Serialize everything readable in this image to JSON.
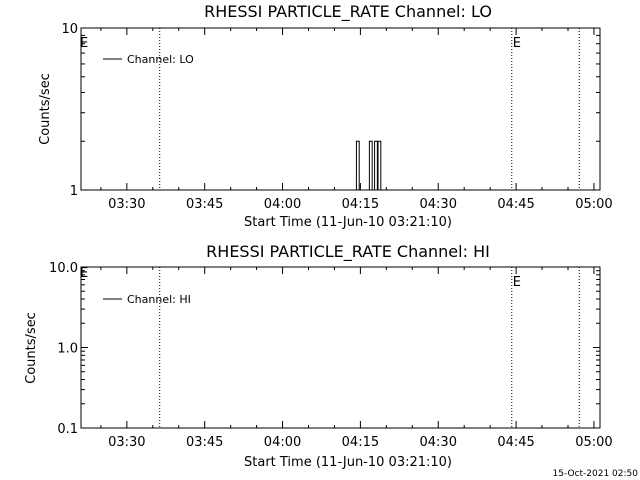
{
  "chart_data": [
    {
      "type": "line",
      "title": "RHESSI PARTICLE_RATE Channel: LO",
      "xlabel": "Start Time (11-Jun-10 03:21:10)",
      "ylabel": "Counts/sec",
      "yscale": "log",
      "ylim": [
        1,
        10
      ],
      "y_tick_labels": [
        "1",
        "10"
      ],
      "xlim": [
        "03:21:10",
        "05:01:10"
      ],
      "x_tick_labels": [
        "03:30",
        "03:45",
        "04:00",
        "04:15",
        "04:30",
        "04:45",
        "05:00"
      ],
      "vertical_markers": [
        {
          "time": "03:36:20",
          "label": ""
        },
        {
          "time": "04:44:10",
          "label": "E"
        },
        {
          "time": "04:57:10",
          "label": ""
        }
      ],
      "left_marker_label": "E",
      "legend": {
        "position": "top-left",
        "entries": [
          "Channel: LO"
        ]
      },
      "series": [
        {
          "name": "Channel: LO",
          "x": [
            "04:14:30",
            "04:17:00",
            "04:18:00",
            "04:18:40"
          ],
          "values": [
            2,
            2,
            2,
            2
          ],
          "baseline": 1
        }
      ]
    },
    {
      "type": "line",
      "title": "RHESSI PARTICLE_RATE Channel: HI",
      "xlabel": "Start Time (11-Jun-10 03:21:10)",
      "ylabel": "Counts/sec",
      "yscale": "log",
      "ylim": [
        0.1,
        10
      ],
      "y_tick_labels": [
        "0.1",
        "1.0",
        "10.0"
      ],
      "xlim": [
        "03:21:10",
        "05:01:10"
      ],
      "x_tick_labels": [
        "03:30",
        "03:45",
        "04:00",
        "04:15",
        "04:30",
        "04:45",
        "05:00"
      ],
      "vertical_markers": [
        {
          "time": "03:36:20",
          "label": ""
        },
        {
          "time": "04:44:10",
          "label": "E"
        },
        {
          "time": "04:57:10",
          "label": ""
        }
      ],
      "left_marker_label": "E",
      "legend": {
        "position": "top-left",
        "entries": [
          "Channel: HI"
        ]
      },
      "series": [
        {
          "name": "Channel: HI",
          "x": [],
          "values": []
        }
      ]
    }
  ],
  "footer": {
    "timestamp": "15-Oct-2021 02:50"
  }
}
